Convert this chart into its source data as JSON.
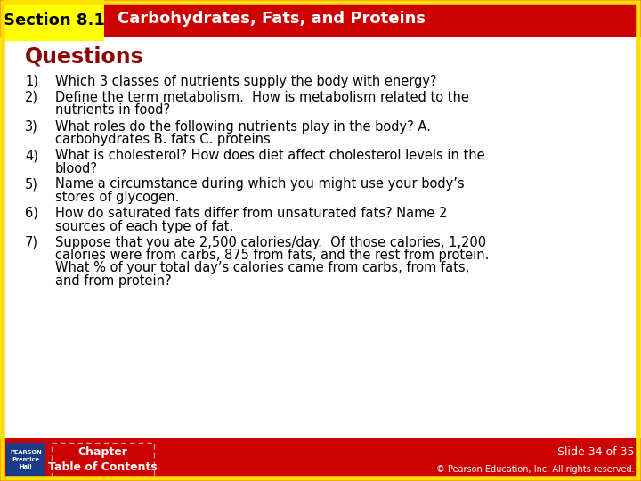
{
  "title_section": "Section 8.1",
  "title_main": "Carbohydrates, Fats, and Proteins",
  "heading": "Questions",
  "questions": [
    [
      "1)",
      "Which 3 classes of nutrients supply the body with energy?"
    ],
    [
      "2)",
      "Define the term metabolism.  How is metabolism related to the\nnutrients in food?"
    ],
    [
      "3)",
      "What roles do the following nutrients play in the body? A.\ncarbohydrates B. fats C. proteins"
    ],
    [
      "4)",
      "What is cholesterol? How does diet affect cholesterol levels in the\nblood?"
    ],
    [
      "5)",
      "Name a circumstance during which you might use your body’s\nstores of glycogen."
    ],
    [
      "6)",
      "How do saturated fats differ from unsaturated fats? Name 2\nsources of each type of fat."
    ],
    [
      "7)",
      "Suppose that you ate 2,500 calories/day.  Of those calories, 1,200\ncalories were from carbs, 875 from fats, and the rest from protein.\nWhat % of your total day’s calories came from carbs, from fats,\nand from protein?"
    ]
  ],
  "footer_chapter": "Chapter\nTable of Contents",
  "footer_slide": "Slide 34 of 35",
  "footer_copyright": "© Pearson Education, Inc. All rights reserved.",
  "bg_color": "#ffffff",
  "header_red": "#cc0000",
  "header_yellow": "#ffff00",
  "heading_color": "#8b0000",
  "text_color": "#000000",
  "footer_bg": "#cc0000",
  "footer_text_color": "#ffffff",
  "border_yellow": "#ffdd00",
  "pearson_blue": "#1a3a8a",
  "title_font_size": 13,
  "heading_font_size": 17,
  "body_font_size": 10.5,
  "footer_font_size": 9,
  "copyright_font_size": 7
}
